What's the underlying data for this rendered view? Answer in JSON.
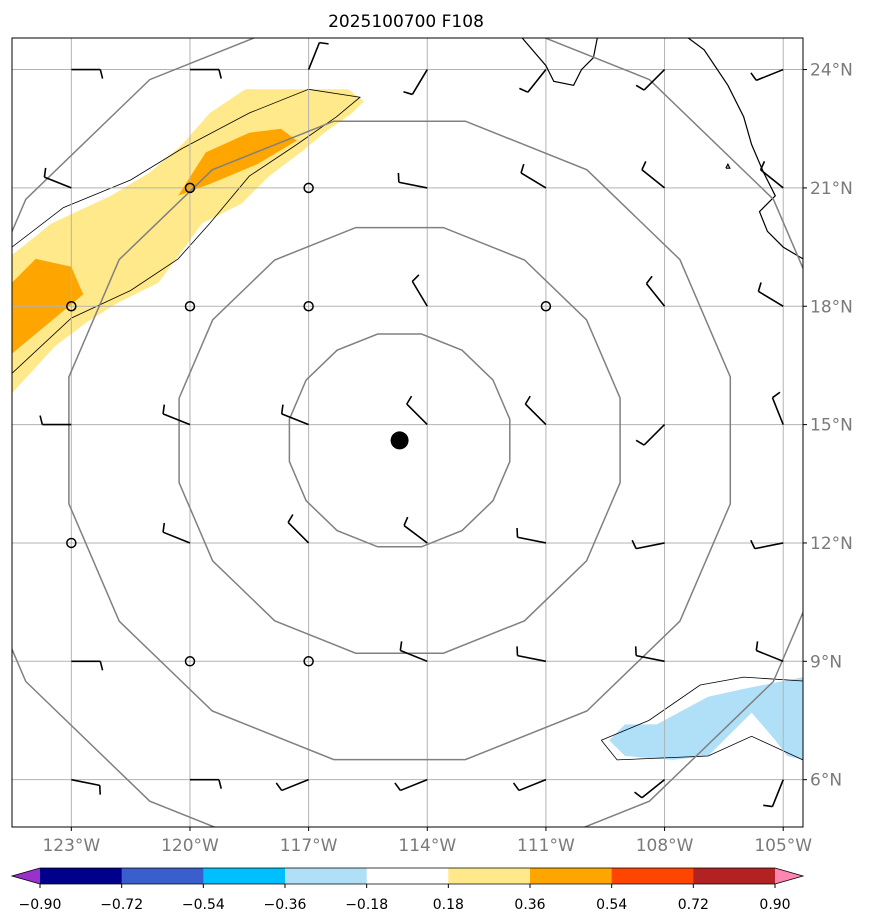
{
  "chart_data": {
    "type": "map",
    "title": "2025100700 F108",
    "lon_range": [
      -124.5,
      -104.5
    ],
    "lat_range": [
      4.8,
      24.8
    ],
    "lon_ticks": [
      -123,
      -120,
      -117,
      -114,
      -111,
      -108,
      -105
    ],
    "lon_tick_labels": [
      "123°W",
      "120°W",
      "117°W",
      "114°W",
      "111°W",
      "108°W",
      "105°W"
    ],
    "lat_ticks": [
      6,
      9,
      12,
      15,
      18,
      21,
      24
    ],
    "lat_tick_labels": [
      "6°N",
      "9°N",
      "12°N",
      "15°N",
      "18°N",
      "21°N",
      "24°N"
    ],
    "storm_center": {
      "lon": -114.7,
      "lat": 14.6
    },
    "range_rings_deg": [
      2.75,
      5.5,
      8.25,
      11.0
    ],
    "colorbar": {
      "bounds": [
        -0.9,
        -0.72,
        -0.54,
        -0.36,
        -0.18,
        0.18,
        0.36,
        0.54,
        0.72,
        0.9
      ],
      "tick_labels": [
        "−0.90",
        "−0.72",
        "−0.54",
        "−0.36",
        "−0.18",
        "0.18",
        "0.36",
        "0.54",
        "0.72",
        "0.90"
      ],
      "colors": [
        "#9932cc",
        "#00008b",
        "#3a5fcd",
        "#00bfff",
        "#b0e0f8",
        "#ffffff",
        "#ffe98a",
        "#ffa500",
        "#ff4500",
        "#b22222",
        "#ff86b0"
      ]
    },
    "shaded_regions": [
      {
        "name": "positive-0.18-band",
        "color": "#ffe98a",
        "value_range": [
          0.18,
          0.36
        ],
        "lonlat": [
          [
            -124.5,
            19.3
          ],
          [
            -123.5,
            20.1
          ],
          [
            -122.0,
            20.8
          ],
          [
            -121.0,
            21.4
          ],
          [
            -120.2,
            22.1
          ],
          [
            -119.5,
            22.9
          ],
          [
            -118.6,
            23.5
          ],
          [
            -117.2,
            23.5
          ],
          [
            -116.0,
            23.5
          ],
          [
            -115.6,
            23.2
          ],
          [
            -115.9,
            22.9
          ],
          [
            -116.6,
            22.4
          ],
          [
            -117.2,
            21.9
          ],
          [
            -118.0,
            21.3
          ],
          [
            -118.7,
            20.6
          ],
          [
            -119.7,
            20.1
          ],
          [
            -120.2,
            19.4
          ],
          [
            -120.8,
            18.6
          ],
          [
            -121.8,
            18.1
          ],
          [
            -122.6,
            17.6
          ],
          [
            -123.4,
            17.0
          ],
          [
            -124.5,
            15.8
          ]
        ]
      },
      {
        "name": "positive-0.36-band-north",
        "color": "#ffa500",
        "value_range": [
          0.36,
          0.54
        ],
        "lonlat": [
          [
            -120.3,
            20.8
          ],
          [
            -119.6,
            21.9
          ],
          [
            -118.5,
            22.4
          ],
          [
            -117.7,
            22.5
          ],
          [
            -117.3,
            22.2
          ],
          [
            -118.3,
            21.6
          ],
          [
            -119.5,
            21.1
          ]
        ]
      },
      {
        "name": "positive-0.36-band-west",
        "color": "#ffa500",
        "value_range": [
          0.36,
          0.54
        ],
        "lonlat": [
          [
            -124.5,
            18.6
          ],
          [
            -123.9,
            19.2
          ],
          [
            -123.0,
            19.0
          ],
          [
            -122.7,
            18.3
          ],
          [
            -123.3,
            17.8
          ],
          [
            -124.5,
            16.8
          ]
        ]
      },
      {
        "name": "negative-0.18-band",
        "color": "#b0e0f8",
        "value_range": [
          -0.36,
          -0.18
        ],
        "lonlat": [
          [
            -109.4,
            7.0
          ],
          [
            -109.0,
            7.4
          ],
          [
            -108.2,
            7.4
          ],
          [
            -106.9,
            8.1
          ],
          [
            -106.0,
            8.3
          ],
          [
            -104.5,
            8.6
          ],
          [
            -104.5,
            6.5
          ],
          [
            -104.9,
            6.6
          ],
          [
            -105.2,
            7.0
          ],
          [
            -105.8,
            7.7
          ],
          [
            -106.5,
            7.0
          ],
          [
            -106.9,
            6.6
          ],
          [
            -107.8,
            6.5
          ],
          [
            -109.0,
            6.6
          ]
        ]
      }
    ],
    "contour_lines": [
      {
        "name": "contour-north",
        "lonlat": [
          [
            -124.5,
            19.5
          ],
          [
            -123.2,
            20.5
          ],
          [
            -121.5,
            21.2
          ],
          [
            -120.2,
            22.0
          ],
          [
            -118.5,
            22.9
          ],
          [
            -117.0,
            23.5
          ],
          [
            -115.7,
            23.3
          ],
          [
            -116.3,
            22.8
          ],
          [
            -117.3,
            22.1
          ],
          [
            -118.5,
            21.3
          ],
          [
            -119.5,
            20.1
          ],
          [
            -120.3,
            19.2
          ],
          [
            -121.5,
            18.4
          ],
          [
            -123.0,
            17.7
          ],
          [
            -124.5,
            16.3
          ]
        ]
      },
      {
        "name": "contour-south",
        "lonlat": [
          [
            -109.6,
            7.0
          ],
          [
            -108.4,
            7.5
          ],
          [
            -107.1,
            8.4
          ],
          [
            -106.0,
            8.6
          ],
          [
            -104.5,
            8.5
          ],
          [
            -104.5,
            6.5
          ],
          [
            -105.8,
            7.1
          ],
          [
            -106.9,
            6.6
          ],
          [
            -109.2,
            6.5
          ],
          [
            -109.6,
            7.0
          ]
        ]
      }
    ],
    "coastlines": [
      {
        "name": "baja-peninsula",
        "lonlat": [
          [
            -111.6,
            24.8
          ],
          [
            -111.0,
            24.1
          ],
          [
            -110.8,
            23.7
          ],
          [
            -110.3,
            23.6
          ],
          [
            -110.1,
            24.0
          ],
          [
            -109.8,
            24.3
          ],
          [
            -109.7,
            24.8
          ]
        ]
      },
      {
        "name": "mainland-mexico",
        "lonlat": [
          [
            -107.4,
            24.8
          ],
          [
            -107.0,
            24.5
          ],
          [
            -106.4,
            23.6
          ],
          [
            -106.0,
            22.8
          ],
          [
            -105.8,
            22.1
          ],
          [
            -105.5,
            21.4
          ],
          [
            -105.2,
            20.8
          ],
          [
            -105.6,
            20.4
          ],
          [
            -105.4,
            19.9
          ],
          [
            -105.0,
            19.5
          ],
          [
            -104.5,
            19.2
          ]
        ]
      },
      {
        "name": "islas-marias",
        "lonlat": [
          [
            -106.45,
            21.5
          ],
          [
            -106.4,
            21.6
          ],
          [
            -106.35,
            21.5
          ],
          [
            -106.45,
            21.5
          ]
        ]
      }
    ],
    "wind_barbs": [
      {
        "lon": -123,
        "lat": 24.0,
        "u": -5,
        "v": 0
      },
      {
        "lon": -120,
        "lat": 24.0,
        "u": -5,
        "v": 0
      },
      {
        "lon": -117,
        "lat": 24.0,
        "u": -2,
        "v": -5
      },
      {
        "lon": -114,
        "lat": 24.0,
        "u": 3,
        "v": 5
      },
      {
        "lon": -111,
        "lat": 24.0,
        "u": 4,
        "v": 5
      },
      {
        "lon": -108,
        "lat": 24.0,
        "u": 5,
        "v": 5
      },
      {
        "lon": -105,
        "lat": 24.0,
        "u": 5,
        "v": 2
      },
      {
        "lon": -123,
        "lat": 21.0,
        "u": 5,
        "v": -2
      },
      {
        "lon": -120,
        "lat": 21.0,
        "u": 0,
        "v": 0
      },
      {
        "lon": -117,
        "lat": 21.0,
        "u": 0,
        "v": 0
      },
      {
        "lon": -114,
        "lat": 21.0,
        "u": 5,
        "v": -1
      },
      {
        "lon": -111,
        "lat": 21.0,
        "u": 5,
        "v": -3
      },
      {
        "lon": -108,
        "lat": 21.0,
        "u": 5,
        "v": -4
      },
      {
        "lon": -105,
        "lat": 21.0,
        "u": 5,
        "v": -4
      },
      {
        "lon": -123,
        "lat": 18.0,
        "u": 0,
        "v": 0
      },
      {
        "lon": -120,
        "lat": 18.0,
        "u": 0,
        "v": 0
      },
      {
        "lon": -117,
        "lat": 18.0,
        "u": 0,
        "v": 0
      },
      {
        "lon": -114,
        "lat": 18.0,
        "u": 3,
        "v": -5
      },
      {
        "lon": -111,
        "lat": 18.0,
        "u": 0,
        "v": 0
      },
      {
        "lon": -108,
        "lat": 18.0,
        "u": 4,
        "v": -5
      },
      {
        "lon": -105,
        "lat": 18.0,
        "u": 5,
        "v": -3
      },
      {
        "lon": -123,
        "lat": 15.0,
        "u": 5,
        "v": 0
      },
      {
        "lon": -120,
        "lat": 15.0,
        "u": 5,
        "v": -2
      },
      {
        "lon": -117,
        "lat": 15.0,
        "u": 5,
        "v": -2
      },
      {
        "lon": -114,
        "lat": 15.0,
        "u": 4,
        "v": -4
      },
      {
        "lon": -111,
        "lat": 15.0,
        "u": 4,
        "v": -4
      },
      {
        "lon": -108,
        "lat": 15.0,
        "u": 5,
        "v": 5
      },
      {
        "lon": -105,
        "lat": 15.0,
        "u": 2,
        "v": -5
      },
      {
        "lon": -123,
        "lat": 12.0,
        "u": 0,
        "v": 0
      },
      {
        "lon": -120,
        "lat": 12.0,
        "u": 5,
        "v": -2
      },
      {
        "lon": -117,
        "lat": 12.0,
        "u": 4,
        "v": -4
      },
      {
        "lon": -114,
        "lat": 12.0,
        "u": 4,
        "v": -3
      },
      {
        "lon": -111,
        "lat": 12.0,
        "u": 5,
        "v": -1
      },
      {
        "lon": -108,
        "lat": 12.0,
        "u": 5,
        "v": 1
      },
      {
        "lon": -105,
        "lat": 12.0,
        "u": 5,
        "v": 1
      },
      {
        "lon": -123,
        "lat": 9.0,
        "u": -5,
        "v": 0
      },
      {
        "lon": -120,
        "lat": 9.0,
        "u": 0,
        "v": 0
      },
      {
        "lon": -117,
        "lat": 9.0,
        "u": 0,
        "v": 0
      },
      {
        "lon": -114,
        "lat": 9.0,
        "u": 5,
        "v": -2
      },
      {
        "lon": -111,
        "lat": 9.0,
        "u": 5,
        "v": -1
      },
      {
        "lon": -108,
        "lat": 9.0,
        "u": 5,
        "v": -1
      },
      {
        "lon": -105,
        "lat": 9.0,
        "u": 5,
        "v": -2
      },
      {
        "lon": -123,
        "lat": 6.0,
        "u": -5,
        "v": 1
      },
      {
        "lon": -120,
        "lat": 6.0,
        "u": -5,
        "v": 0
      },
      {
        "lon": -117,
        "lat": 6.0,
        "u": 5,
        "v": 2
      },
      {
        "lon": -114,
        "lat": 6.0,
        "u": 5,
        "v": 2
      },
      {
        "lon": -111,
        "lat": 6.0,
        "u": 5,
        "v": 2
      },
      {
        "lon": -108,
        "lat": 6.0,
        "u": 5,
        "v": 4
      },
      {
        "lon": -105,
        "lat": 6.0,
        "u": 2,
        "v": 5
      }
    ]
  }
}
